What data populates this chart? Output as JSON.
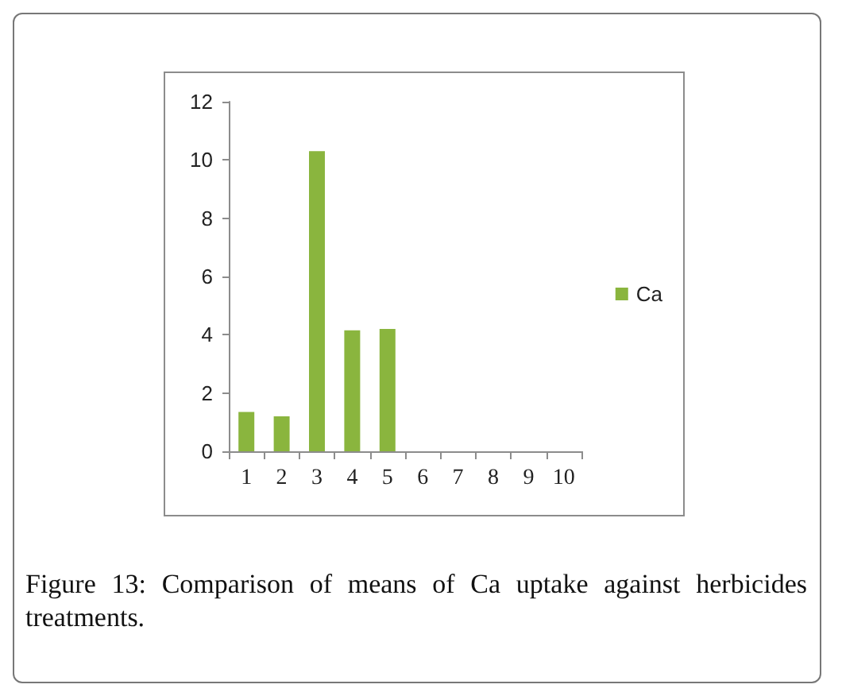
{
  "chart_data": {
    "type": "bar",
    "categories": [
      "1",
      "2",
      "3",
      "4",
      "5",
      "6",
      "7",
      "8",
      "9",
      "10"
    ],
    "series": [
      {
        "name": "Ca",
        "color": "#8ab53e",
        "values": [
          1.35,
          1.2,
          10.3,
          4.15,
          4.2,
          null,
          null,
          null,
          null,
          null
        ]
      }
    ],
    "ylim": [
      0,
      12
    ],
    "yticks": [
      0,
      2,
      4,
      6,
      8,
      10,
      12
    ],
    "grid": false,
    "legend": "right",
    "annotations": [
      "Figure 13: Comparison of means of Ca uptake against herbicides treatments."
    ]
  }
}
